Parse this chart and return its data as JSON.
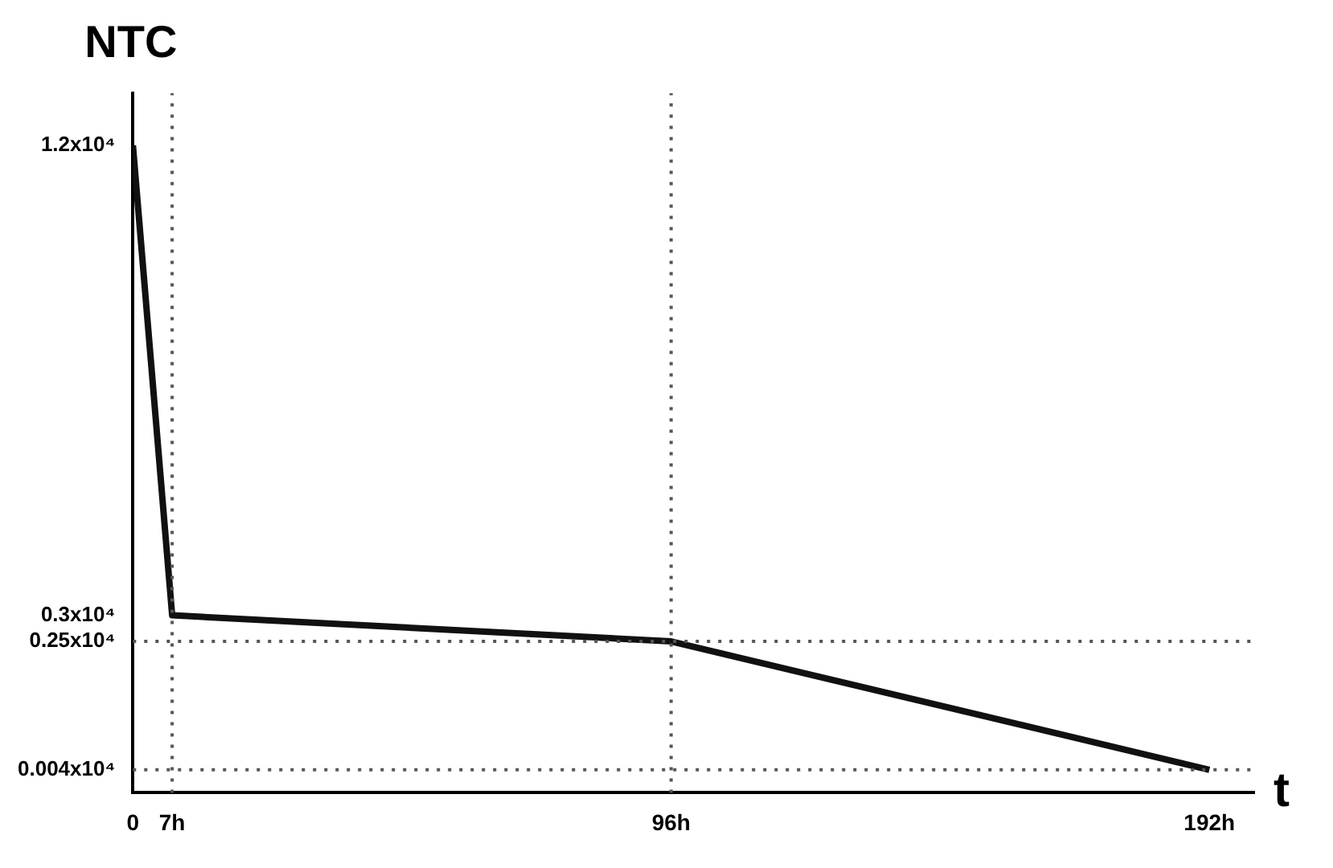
{
  "chart_data": {
    "type": "line",
    "xlabel": "t",
    "ylabel": "NTC",
    "x": [
      0,
      7,
      96,
      192
    ],
    "series": [
      {
        "color": "#111111",
        "values": [
          12000,
          3000,
          2500,
          40
        ]
      }
    ],
    "xlim": [
      0,
      200
    ],
    "xticks": [
      0,
      {
        "value": 7,
        "label": "7h"
      },
      {
        "value": 96,
        "label": "96h"
      },
      {
        "value": 192,
        "label": "192h"
      }
    ],
    "ylim": [
      -400,
      13000
    ],
    "yticks": [
      {
        "value": 40,
        "label": "0.004x10⁴"
      },
      {
        "value": 2500,
        "label": "0.25x10⁴"
      },
      {
        "value": 3000,
        "label": "0.3x10⁴"
      },
      {
        "value": 12000,
        "label": "1.2x10⁴"
      }
    ],
    "ref_lines": [
      {
        "axis": "y",
        "value": 2500,
        "color": "#555555",
        "line_style": "dotted"
      },
      {
        "axis": "y",
        "value": 40,
        "color": "#555555",
        "line_style": "dotted"
      },
      {
        "axis": "x",
        "value": 7,
        "color": "#555555",
        "line_style": "dotted"
      },
      {
        "axis": "x",
        "value": 96,
        "color": "#555555",
        "line_style": "dotted"
      }
    ],
    "grid": false,
    "legend": false,
    "marker": "none",
    "line_style": "solid"
  }
}
